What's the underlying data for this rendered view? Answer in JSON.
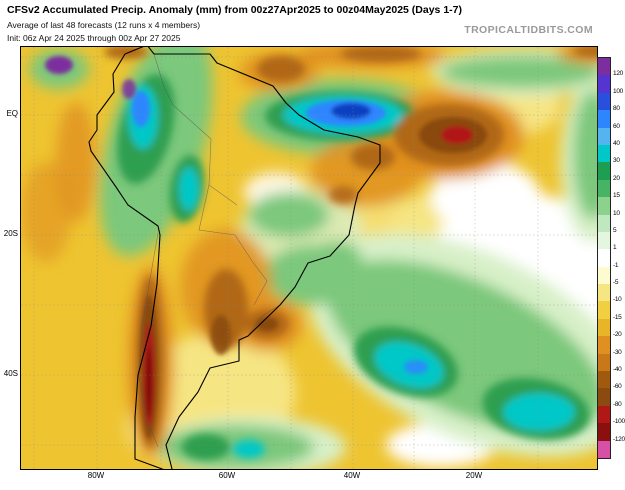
{
  "header": {
    "title": "CFSv2 Accumulated Precip. Anomaly (mm) from 00z27Apr2025 to 00z04May2025 (Days 1-7)",
    "subtitle": "Average of last 48 forecasts (12 runs x 4 members)",
    "init_line": "Init: 06z Apr 24 2025 through 00z Apr 27 2025",
    "watermark": "TROPICALTIDBITS.COM"
  },
  "map": {
    "lat_labels": [
      "EQ",
      "20S",
      "40S"
    ],
    "lon_labels": [
      "80W",
      "60W",
      "40W",
      "20W"
    ]
  },
  "colorbar": {
    "labels": [
      "120",
      "100",
      "80",
      "60",
      "40",
      "30",
      "20",
      "15",
      "10",
      "5",
      "1",
      "-1",
      "-5",
      "-10",
      "-15",
      "-20",
      "-30",
      "-40",
      "-60",
      "-80",
      "-100",
      "-120"
    ],
    "colors": [
      "#7d2e9e",
      "#5535cf",
      "#2850dc",
      "#2e86ff",
      "#55b4f0",
      "#00c8c8",
      "#1e9e50",
      "#46b464",
      "#8cd28c",
      "#c0e8c0",
      "#e4f6e0",
      "#ffffff",
      "#fffbd0",
      "#f6e583",
      "#f0d040",
      "#e8b428",
      "#e09020",
      "#c87818",
      "#a05a10",
      "#8a4a10",
      "#b01818",
      "#8a0f0f",
      "#d650a8"
    ]
  },
  "colors": {
    "background": "#ffffff",
    "watermark_gray": "#9a9a9a",
    "base_anomaly_gold": "#eec431"
  }
}
